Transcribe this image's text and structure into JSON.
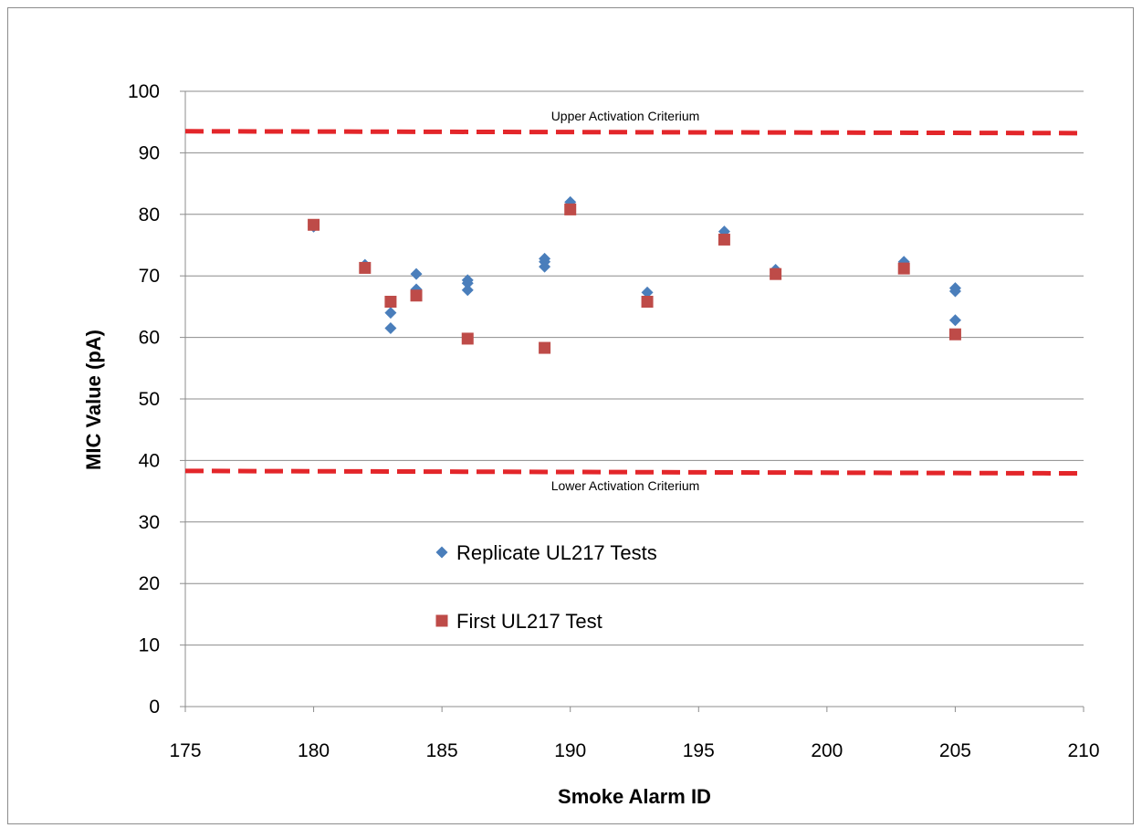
{
  "chart_data": {
    "type": "scatter",
    "xlabel": "Smoke Alarm ID",
    "ylabel": "MIC Value  (pA)",
    "xlim": [
      175,
      210
    ],
    "ylim": [
      0,
      100
    ],
    "x_ticks": [
      175,
      180,
      185,
      190,
      195,
      200,
      205,
      210
    ],
    "y_ticks": [
      0,
      10,
      20,
      30,
      40,
      50,
      60,
      70,
      80,
      90,
      100
    ],
    "grid": "horizontal",
    "legend_position": "center-left",
    "series": [
      {
        "name": "Replicate UL217 Tests",
        "marker": "diamond",
        "color": "#4a7ebb",
        "points": [
          [
            180,
            78.0
          ],
          [
            182,
            71.8
          ],
          [
            183,
            64.0
          ],
          [
            183,
            61.5
          ],
          [
            184,
            70.3
          ],
          [
            184,
            67.8
          ],
          [
            186,
            69.3
          ],
          [
            186,
            68.8
          ],
          [
            186,
            67.7
          ],
          [
            189,
            72.8
          ],
          [
            189,
            72.3
          ],
          [
            189,
            71.5
          ],
          [
            190,
            82.0
          ],
          [
            193,
            67.3
          ],
          [
            196,
            77.2
          ],
          [
            198,
            71.0
          ],
          [
            203,
            72.3
          ],
          [
            205,
            68.0
          ],
          [
            205,
            67.5
          ],
          [
            205,
            62.8
          ]
        ]
      },
      {
        "name": "First UL217 Test",
        "marker": "square",
        "color": "#be4b48",
        "points": [
          [
            180,
            78.3
          ],
          [
            182,
            71.3
          ],
          [
            183,
            65.8
          ],
          [
            184,
            66.8
          ],
          [
            186,
            59.8
          ],
          [
            189,
            58.3
          ],
          [
            190,
            80.8
          ],
          [
            193,
            65.8
          ],
          [
            196,
            75.9
          ],
          [
            198,
            70.3
          ],
          [
            203,
            71.2
          ],
          [
            205,
            60.5
          ]
        ]
      }
    ],
    "reference_lines": [
      {
        "label": "Upper Activation Criterium",
        "y_start": 93.5,
        "y_end": 93.2,
        "color": "#e3262a",
        "style": "dashed"
      },
      {
        "label": "Lower Activation Criterium",
        "y_start": 38.3,
        "y_end": 37.9,
        "color": "#e3262a",
        "style": "dashed"
      }
    ]
  }
}
